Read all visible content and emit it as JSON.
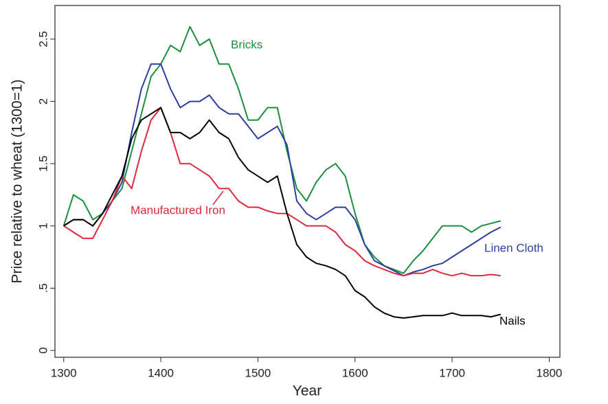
{
  "chart_data": {
    "type": "line",
    "x_label": "Year",
    "y_label": "Price relative to wheat (1300=1)",
    "x": [
      1300,
      1310,
      1320,
      1330,
      1340,
      1350,
      1360,
      1370,
      1380,
      1390,
      1400,
      1410,
      1420,
      1430,
      1440,
      1450,
      1460,
      1470,
      1480,
      1490,
      1500,
      1510,
      1520,
      1530,
      1540,
      1550,
      1560,
      1570,
      1580,
      1590,
      1600,
      1610,
      1620,
      1630,
      1640,
      1650,
      1660,
      1670,
      1680,
      1690,
      1700,
      1710,
      1720,
      1730,
      1740,
      1750
    ],
    "series": [
      {
        "name": "Bricks",
        "color": "#1a8f3c",
        "values": [
          1.0,
          1.25,
          1.2,
          1.05,
          1.1,
          1.2,
          1.3,
          1.6,
          1.9,
          2.2,
          2.3,
          2.45,
          2.4,
          2.6,
          2.45,
          2.5,
          2.3,
          2.3,
          2.1,
          1.85,
          1.85,
          1.95,
          1.95,
          1.6,
          1.3,
          1.2,
          1.35,
          1.45,
          1.5,
          1.4,
          1.1,
          0.85,
          0.75,
          0.68,
          0.65,
          0.62,
          0.72,
          0.8,
          0.9,
          1.0,
          1.0,
          1.0,
          0.95,
          1.0,
          1.02,
          1.04
        ]
      },
      {
        "name": "Linen Cloth",
        "color": "#2b3fa0",
        "values": [
          1.0,
          1.05,
          1.05,
          1.0,
          1.1,
          1.2,
          1.35,
          1.75,
          2.1,
          2.3,
          2.3,
          2.1,
          1.95,
          2.0,
          2.0,
          2.05,
          1.95,
          1.9,
          1.9,
          1.8,
          1.7,
          1.75,
          1.8,
          1.65,
          1.2,
          1.1,
          1.05,
          1.1,
          1.15,
          1.15,
          1.05,
          0.85,
          0.72,
          0.68,
          0.64,
          0.6,
          0.63,
          0.65,
          0.68,
          0.7,
          0.75,
          0.8,
          0.85,
          0.9,
          0.95,
          0.99
        ]
      },
      {
        "name": "Manufactured Iron",
        "color": "#e0283c",
        "values": [
          1.0,
          0.95,
          0.9,
          0.9,
          1.05,
          1.2,
          1.4,
          1.3,
          1.6,
          1.85,
          1.95,
          1.75,
          1.5,
          1.5,
          1.45,
          1.4,
          1.3,
          1.3,
          1.2,
          1.15,
          1.15,
          1.12,
          1.1,
          1.1,
          1.05,
          1.0,
          1.0,
          1.0,
          0.95,
          0.85,
          0.8,
          0.72,
          0.68,
          0.65,
          0.62,
          0.6,
          0.62,
          0.62,
          0.65,
          0.62,
          0.6,
          0.62,
          0.6,
          0.6,
          0.61,
          0.6
        ]
      },
      {
        "name": "Nails",
        "color": "#000000",
        "values": [
          1.0,
          1.05,
          1.05,
          1.0,
          1.1,
          1.25,
          1.4,
          1.7,
          1.85,
          1.9,
          1.95,
          1.75,
          1.75,
          1.7,
          1.75,
          1.85,
          1.75,
          1.7,
          1.55,
          1.45,
          1.4,
          1.35,
          1.4,
          1.1,
          0.85,
          0.75,
          0.7,
          0.68,
          0.65,
          0.6,
          0.48,
          0.43,
          0.35,
          0.3,
          0.27,
          0.26,
          0.27,
          0.28,
          0.28,
          0.28,
          0.3,
          0.28,
          0.28,
          0.28,
          0.27,
          0.29
        ]
      }
    ],
    "xlim": [
      1291,
      1811
    ],
    "ylim": [
      -0.055,
      2.77
    ],
    "xticks": [
      1300,
      1400,
      1500,
      1600,
      1700,
      1800
    ],
    "yticks": [
      0,
      {
        "value": 0.5,
        "label": ".5"
      },
      1,
      1.5,
      2,
      2.5
    ],
    "grid": false
  }
}
